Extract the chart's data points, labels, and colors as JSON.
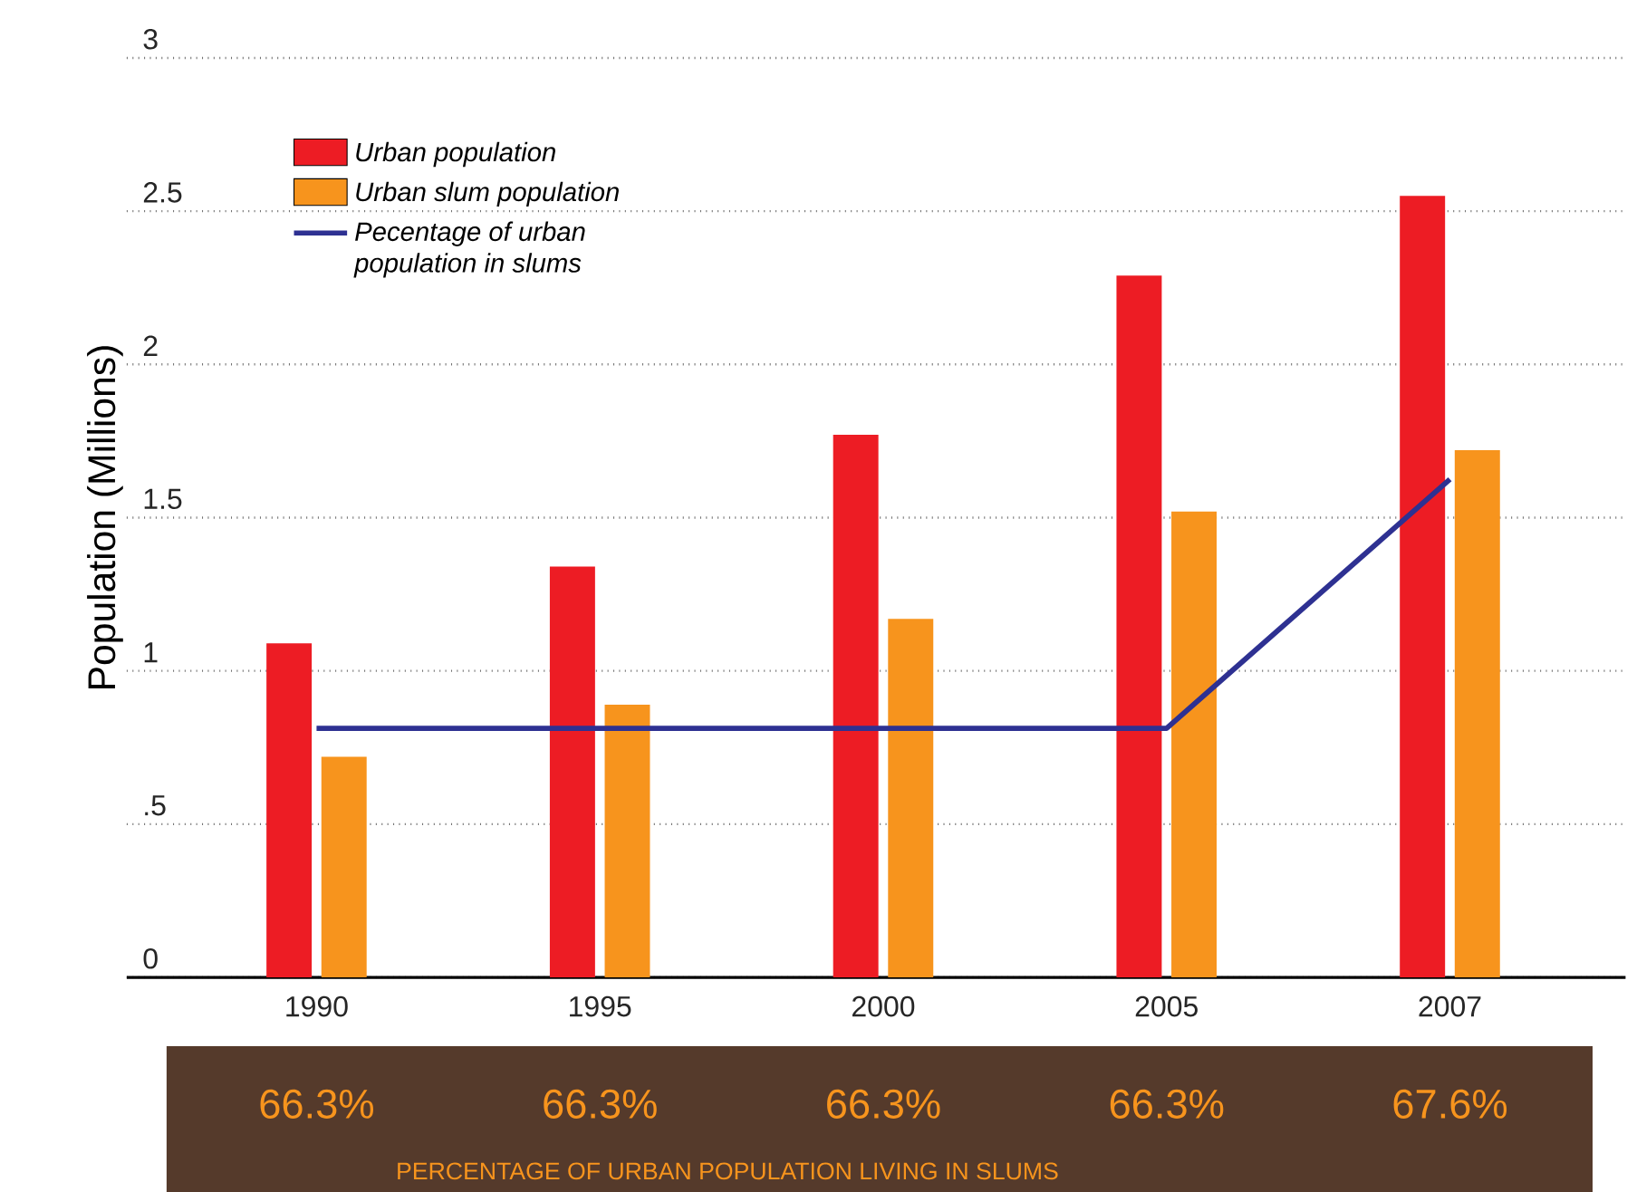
{
  "chart_data": {
    "type": "bar",
    "ylabel": "Population (Millions)",
    "categories": [
      "1990",
      "1995",
      "2000",
      "2005",
      "2007"
    ],
    "series": [
      {
        "name": "Urban population",
        "color": "#ed1c24",
        "values": [
          1.09,
          1.34,
          1.77,
          2.29,
          2.55
        ]
      },
      {
        "name": "Urban slum population",
        "color": "#f7941d",
        "values": [
          0.72,
          0.89,
          1.17,
          1.52,
          1.72
        ]
      },
      {
        "name": "Pecentage of urban population in slums",
        "type": "line",
        "axis": "y2",
        "color": "#2e3192",
        "values": [
          66.3,
          66.3,
          66.3,
          66.3,
          67.6
        ],
        "value_labels": [
          "66.3%",
          "66.3%",
          "66.3%",
          "66.3%",
          "67.6%"
        ]
      }
    ],
    "ylim": [
      0,
      3
    ],
    "yticks": [
      0,
      {
        "value": 0.5,
        "label": ".5"
      },
      1,
      1.5,
      2,
      2.5,
      3
    ],
    "y2lim": [
      65.0,
      69.8
    ],
    "annotations": [
      "PERCENTAGE OF URBAN POPULATION LIVING IN SLUMS"
    ],
    "grid": "y",
    "legend": "top left",
    "tick_labels": "xy"
  }
}
